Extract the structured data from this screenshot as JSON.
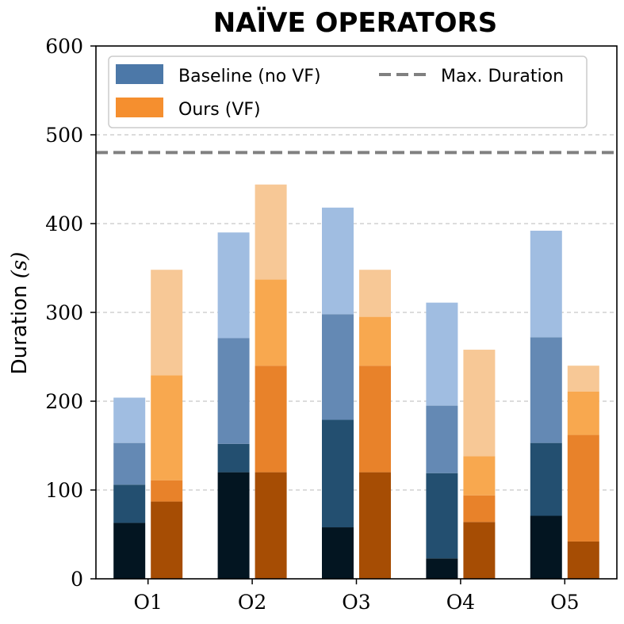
{
  "chart_data": {
    "type": "bar",
    "stacked": true,
    "title": "NAÏVE OPERATORS",
    "xlabel": "",
    "ylabel": "Duration (s)",
    "ylabel_main": "Duration ",
    "ylabel_var": "(s)",
    "ylim": [
      0,
      600
    ],
    "yticks": [
      0,
      100,
      200,
      300,
      400,
      500,
      600
    ],
    "categories": [
      "O1",
      "O2",
      "O3",
      "O4",
      "O5"
    ],
    "max_duration": 480,
    "grid": true,
    "legend_position": "top",
    "legend": {
      "baseline": "Baseline (no VF)",
      "ours": "Ours (VF)",
      "max": "Max. Duration"
    },
    "colors": {
      "baseline": [
        "#031521",
        "#234f70",
        "#6489b4",
        "#a0bde1"
      ],
      "ours": [
        "#a64d04",
        "#e8822a",
        "#f8a84f",
        "#f7c896"
      ],
      "baseline_legend": "#4c78a8",
      "ours_legend": "#f58f2f",
      "max_line": "#808080",
      "grid": "#c8c8c8"
    },
    "series": [
      {
        "name": "Baseline (no VF)",
        "segments": [
          [
            63,
            43,
            47,
            51
          ],
          [
            120,
            32,
            119,
            119
          ],
          [
            58,
            121,
            119,
            120
          ],
          [
            23,
            96,
            76,
            116
          ],
          [
            71,
            82,
            119,
            120
          ]
        ],
        "totals": [
          204,
          390,
          418,
          311,
          392
        ]
      },
      {
        "name": "Ours (VF)",
        "segments": [
          [
            87,
            24,
            118,
            119
          ],
          [
            120,
            120,
            97,
            107
          ],
          [
            120,
            120,
            55,
            53
          ],
          [
            64,
            30,
            44,
            120
          ],
          [
            42,
            120,
            49,
            29
          ]
        ],
        "totals": [
          348,
          444,
          348,
          258,
          240
        ]
      }
    ]
  }
}
